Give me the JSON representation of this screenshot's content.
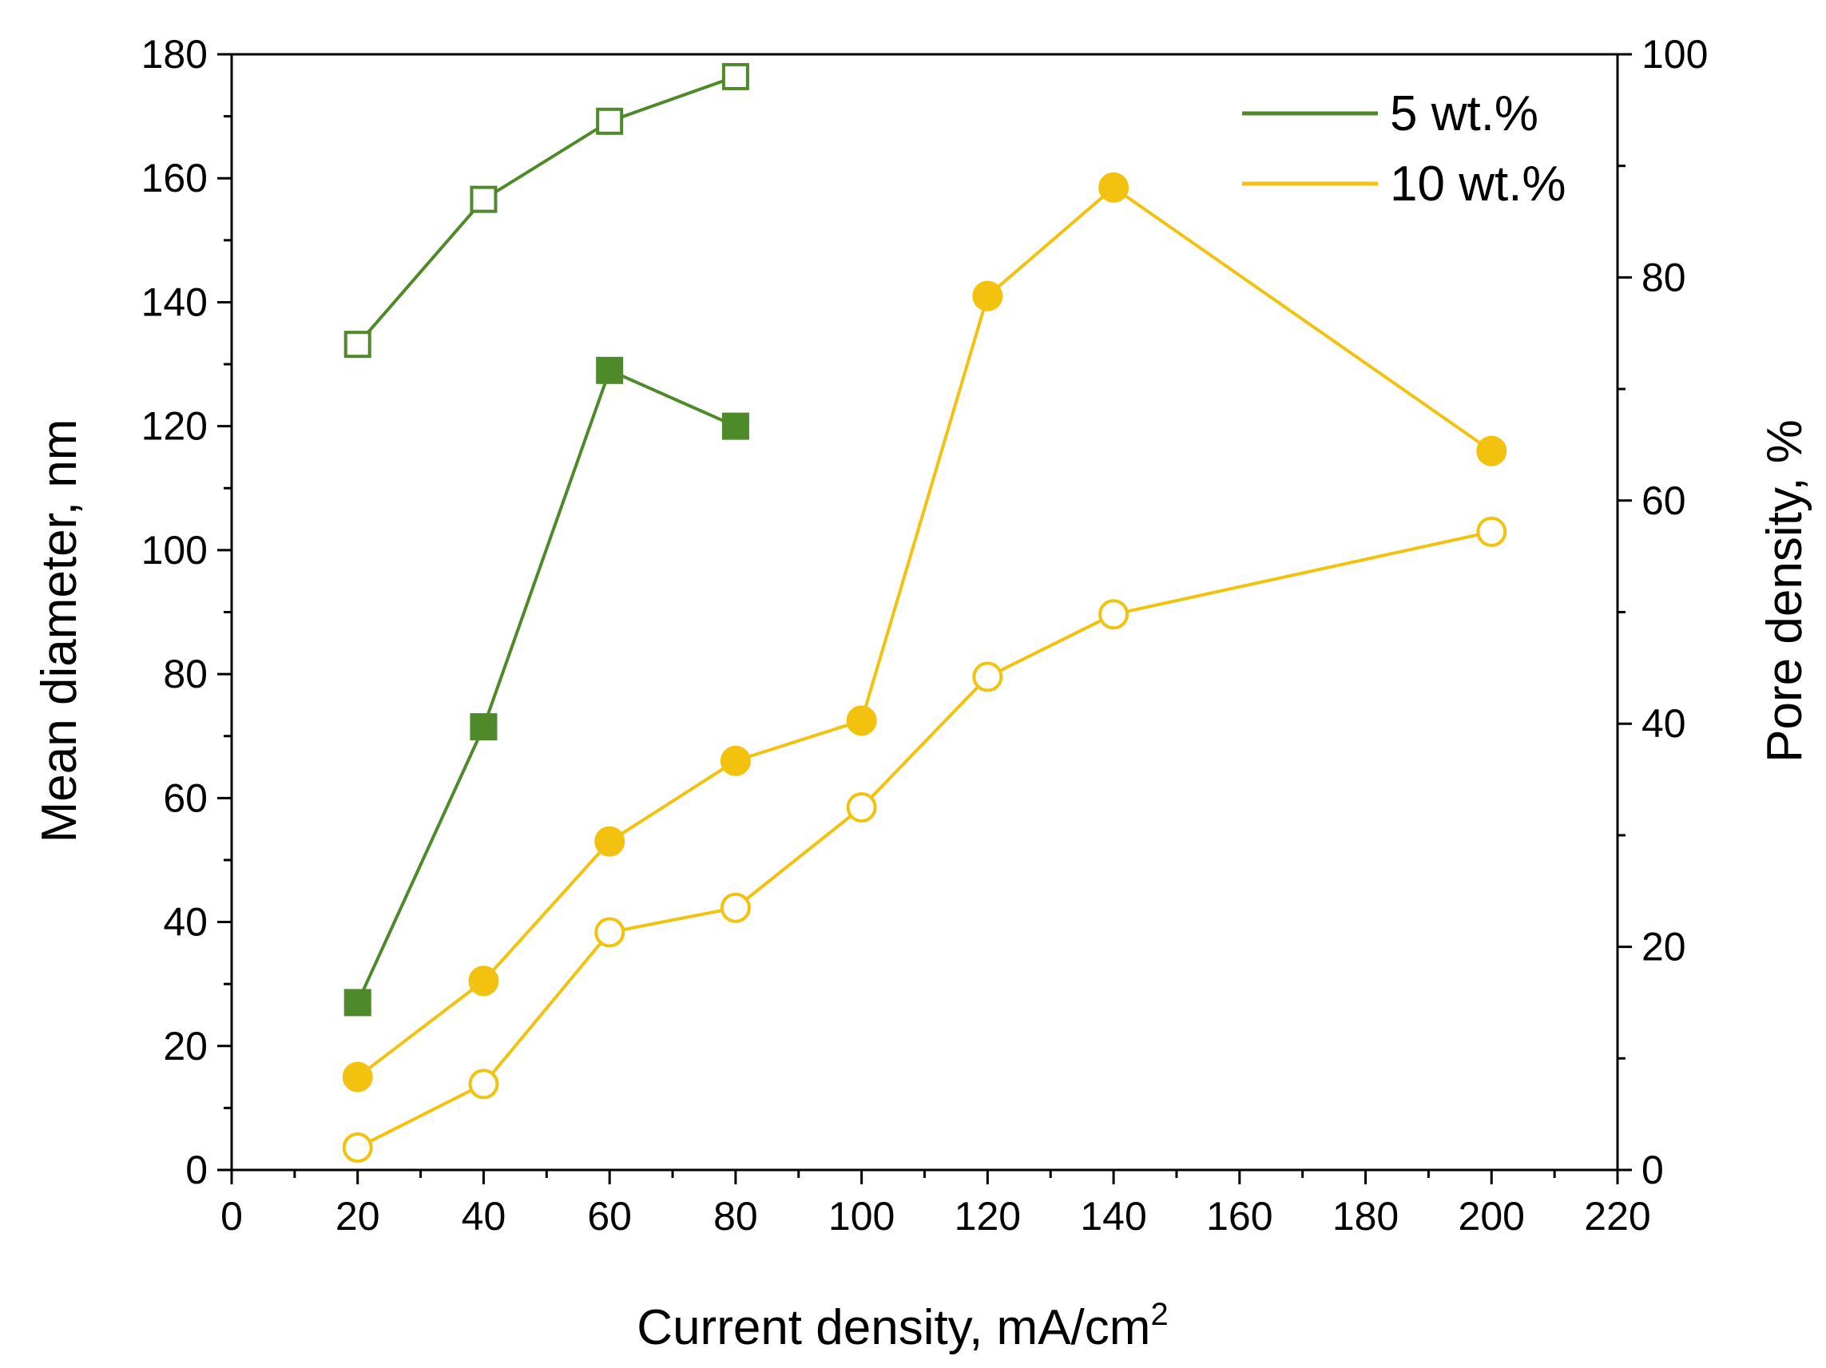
{
  "chart_data": {
    "type": "line",
    "xlabel": "Current density, mA/cm",
    "xlabel_superscript": "2",
    "ylabel_left": "Mean diameter, nm",
    "ylabel_right": "Pore density, %",
    "xlim": [
      0,
      220
    ],
    "ylim_left": [
      0,
      180
    ],
    "ylim_right": [
      0,
      100
    ],
    "x_ticks": [
      "0",
      "20",
      "40",
      "60",
      "80",
      "100",
      "120",
      "140",
      "160",
      "180",
      "200",
      "220"
    ],
    "y_left_ticks": [
      "0",
      "20",
      "40",
      "60",
      "80",
      "100",
      "120",
      "140",
      "160",
      "180"
    ],
    "y_right_ticks": [
      "0",
      "20",
      "40",
      "60",
      "80",
      "100"
    ],
    "legend": [
      {
        "label": "5 wt.%",
        "color": "#4e8a2a"
      },
      {
        "label": "10 wt.%",
        "color": "#f2c20e"
      }
    ],
    "legend_position": "top-right",
    "series": [
      {
        "name": "5 wt.% mean diameter",
        "axis": "left",
        "marker": "square",
        "filled": true,
        "color": "#4e8a2a",
        "x": [
          20,
          40,
          60,
          80
        ],
        "y": [
          27,
          71.5,
          129,
          120
        ]
      },
      {
        "name": "5 wt.% pore density",
        "axis": "right",
        "marker": "square",
        "filled": false,
        "color": "#4e8a2a",
        "x": [
          20,
          40,
          60,
          80
        ],
        "y": [
          74,
          87,
          94,
          98
        ]
      },
      {
        "name": "10 wt.% mean diameter",
        "axis": "left",
        "marker": "circle",
        "filled": true,
        "color": "#f2c20e",
        "x": [
          20,
          40,
          60,
          80,
          100,
          120,
          140,
          200
        ],
        "y": [
          15,
          30.5,
          53,
          66,
          72.5,
          141,
          158.5,
          116
        ]
      },
      {
        "name": "10 wt.% pore density",
        "axis": "right",
        "marker": "circle",
        "filled": false,
        "color": "#f2c20e",
        "x": [
          20,
          40,
          60,
          80,
          100,
          120,
          140,
          200
        ],
        "y": [
          2,
          7.7,
          21.3,
          23.5,
          32.5,
          44.2,
          49.8,
          57.2
        ]
      }
    ]
  }
}
